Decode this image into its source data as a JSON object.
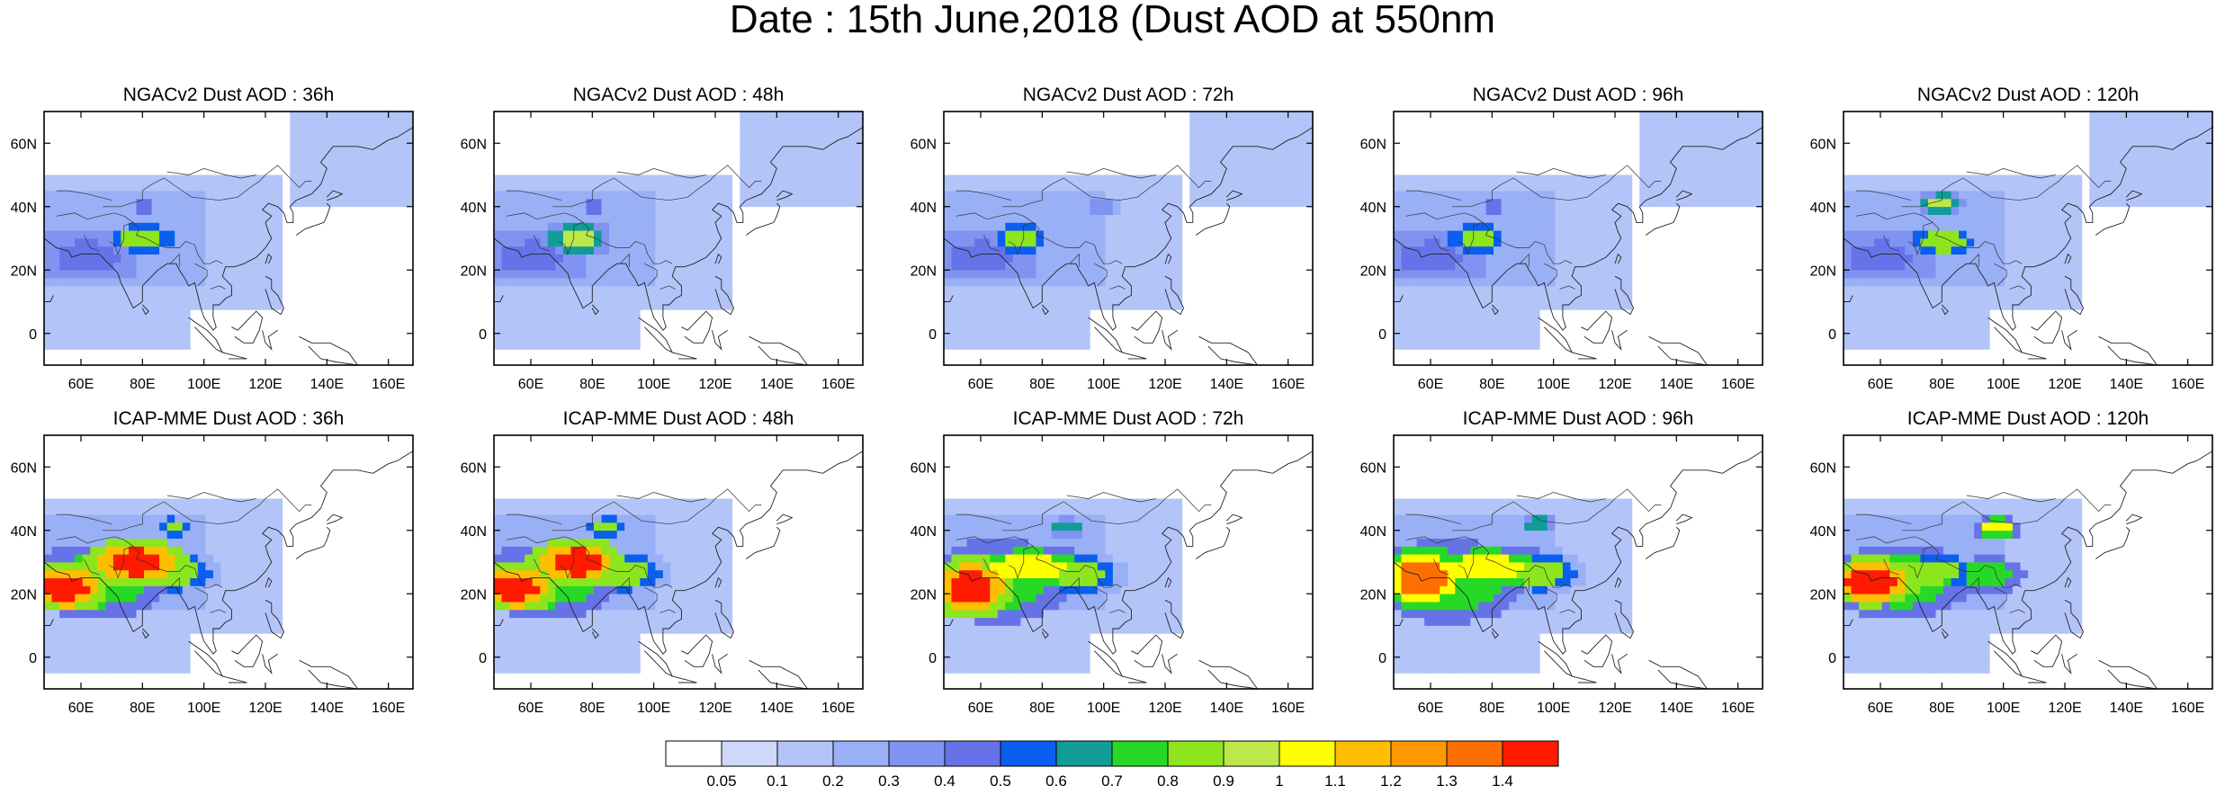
{
  "title": "Date : 15th June,2018 (Dust AOD at 550nm",
  "colorbar": {
    "levels": [
      "0.05",
      "0.1",
      "0.2",
      "0.3",
      "0.4",
      "0.5",
      "0.6",
      "0.7",
      "0.8",
      "0.9",
      "1",
      "1.1",
      "1.2",
      "1.3",
      "1.4"
    ],
    "colors": [
      "#ffffff",
      "#cdd8fb",
      "#b3c4f9",
      "#99b0f6",
      "#8093f1",
      "#6673e8",
      "#0a5ef0",
      "#119c98",
      "#26d926",
      "#8de61d",
      "#bde84a",
      "#ffff00",
      "#ffbf00",
      "#ff9900",
      "#ff6e00",
      "#ff1a00"
    ]
  },
  "chart_data": [
    {
      "type": "heatmap",
      "title": "NGACv2 Dust AOD : 36h",
      "xticks": [
        "60E",
        "80E",
        "100E",
        "120E",
        "140E",
        "160E"
      ],
      "yticks": [
        "60N",
        "40N",
        "20N",
        "0"
      ],
      "xlim": [
        48,
        168
      ],
      "ylim": [
        -10,
        70
      ],
      "hotspots": [
        {
          "lon": 80,
          "lat": 30,
          "rx": 7,
          "ry": 3,
          "level": 9
        },
        {
          "lon": 62,
          "lat": 24,
          "rx": 10,
          "ry": 5,
          "level": 5
        },
        {
          "lon": 80,
          "lat": 40,
          "rx": 4,
          "ry": 2,
          "level": 5
        }
      ]
    },
    {
      "type": "heatmap",
      "title": "NGACv2 Dust AOD : 48h",
      "xticks": [
        "60E",
        "80E",
        "100E",
        "120E",
        "140E",
        "160E"
      ],
      "yticks": [
        "60N",
        "40N",
        "20N",
        "0"
      ],
      "xlim": [
        48,
        168
      ],
      "ylim": [
        -10,
        70
      ],
      "hotspots": [
        {
          "lon": 75,
          "lat": 30,
          "rx": 6,
          "ry": 3,
          "level": 10
        },
        {
          "lon": 60,
          "lat": 24,
          "rx": 10,
          "ry": 5,
          "level": 5
        },
        {
          "lon": 80,
          "lat": 40,
          "rx": 4,
          "ry": 2,
          "level": 5
        }
      ]
    },
    {
      "type": "heatmap",
      "title": "NGACv2 Dust AOD : 72h",
      "xticks": [
        "60E",
        "80E",
        "100E",
        "120E",
        "140E",
        "160E"
      ],
      "yticks": [
        "60N",
        "40N",
        "20N",
        "0"
      ],
      "xlim": [
        48,
        168
      ],
      "ylim": [
        -10,
        70
      ],
      "hotspots": [
        {
          "lon": 73,
          "lat": 30,
          "rx": 6,
          "ry": 3,
          "level": 9
        },
        {
          "lon": 60,
          "lat": 24,
          "rx": 10,
          "ry": 5,
          "level": 5
        },
        {
          "lon": 100,
          "lat": 40,
          "rx": 5,
          "ry": 2,
          "level": 4
        }
      ]
    },
    {
      "type": "heatmap",
      "title": "NGACv2 Dust AOD : 96h",
      "xticks": [
        "60E",
        "80E",
        "100E",
        "120E",
        "140E",
        "160E"
      ],
      "yticks": [
        "60N",
        "40N",
        "20N",
        "0"
      ],
      "xlim": [
        48,
        168
      ],
      "ylim": [
        -10,
        70
      ],
      "hotspots": [
        {
          "lon": 75,
          "lat": 30,
          "rx": 6,
          "ry": 3,
          "level": 9
        },
        {
          "lon": 60,
          "lat": 24,
          "rx": 10,
          "ry": 5,
          "level": 5
        },
        {
          "lon": 80,
          "lat": 40,
          "rx": 4,
          "ry": 2,
          "level": 5
        }
      ]
    },
    {
      "type": "heatmap",
      "title": "NGACv2 Dust AOD : 120h",
      "xticks": [
        "60E",
        "80E",
        "100E",
        "120E",
        "140E",
        "160E"
      ],
      "yticks": [
        "60N",
        "40N",
        "20N",
        "0"
      ],
      "xlim": [
        48,
        168
      ],
      "ylim": [
        -10,
        70
      ],
      "hotspots": [
        {
          "lon": 80,
          "lat": 29,
          "rx": 7,
          "ry": 3,
          "level": 9
        },
        {
          "lon": 60,
          "lat": 24,
          "rx": 10,
          "ry": 5,
          "level": 5
        },
        {
          "lon": 80,
          "lat": 41,
          "rx": 4,
          "ry": 2,
          "level": 10
        }
      ]
    },
    {
      "type": "heatmap",
      "title": "ICAP-MME Dust AOD : 36h",
      "xticks": [
        "60E",
        "80E",
        "100E",
        "120E",
        "140E",
        "160E"
      ],
      "yticks": [
        "60N",
        "40N",
        "20N",
        "0"
      ],
      "xlim": [
        48,
        168
      ],
      "ylim": [
        -10,
        70
      ],
      "hotspots": [
        {
          "lon": 78,
          "lat": 30,
          "rx": 9,
          "ry": 4,
          "level": 15
        },
        {
          "lon": 55,
          "lat": 22,
          "rx": 7,
          "ry": 4,
          "level": 15
        },
        {
          "lon": 65,
          "lat": 24,
          "rx": 16,
          "ry": 8,
          "level": 8
        },
        {
          "lon": 90,
          "lat": 27,
          "rx": 8,
          "ry": 4,
          "level": 9
        },
        {
          "lon": 90,
          "lat": 41,
          "rx": 3,
          "ry": 2,
          "level": 9
        }
      ]
    },
    {
      "type": "heatmap",
      "title": "ICAP-MME Dust AOD : 48h",
      "xticks": [
        "60E",
        "80E",
        "100E",
        "120E",
        "140E",
        "160E"
      ],
      "yticks": [
        "60N",
        "40N",
        "20N",
        "0"
      ],
      "xlim": [
        48,
        168
      ],
      "ylim": [
        -10,
        70
      ],
      "hotspots": [
        {
          "lon": 75,
          "lat": 30,
          "rx": 8,
          "ry": 4,
          "level": 15
        },
        {
          "lon": 55,
          "lat": 22,
          "rx": 7,
          "ry": 4,
          "level": 15
        },
        {
          "lon": 65,
          "lat": 24,
          "rx": 16,
          "ry": 8,
          "level": 8
        },
        {
          "lon": 90,
          "lat": 27,
          "rx": 8,
          "ry": 4,
          "level": 9
        },
        {
          "lon": 85,
          "lat": 41,
          "rx": 4,
          "ry": 2,
          "level": 9
        }
      ]
    },
    {
      "type": "heatmap",
      "title": "ICAP-MME Dust AOD : 72h",
      "xticks": [
        "60E",
        "80E",
        "100E",
        "120E",
        "140E",
        "160E"
      ],
      "yticks": [
        "60N",
        "40N",
        "20N",
        "0"
      ],
      "xlim": [
        48,
        168
      ],
      "ylim": [
        -10,
        70
      ],
      "hotspots": [
        {
          "lon": 57,
          "lat": 22,
          "rx": 7,
          "ry": 5,
          "level": 15
        },
        {
          "lon": 75,
          "lat": 28,
          "rx": 12,
          "ry": 4,
          "level": 11
        },
        {
          "lon": 66,
          "lat": 24,
          "rx": 16,
          "ry": 9,
          "level": 8
        },
        {
          "lon": 92,
          "lat": 26,
          "rx": 8,
          "ry": 4,
          "level": 9
        },
        {
          "lon": 88,
          "lat": 41,
          "rx": 4,
          "ry": 2,
          "level": 7
        }
      ]
    },
    {
      "type": "heatmap",
      "title": "ICAP-MME Dust AOD : 96h",
      "xticks": [
        "60E",
        "80E",
        "100E",
        "120E",
        "140E",
        "160E"
      ],
      "yticks": [
        "60N",
        "40N",
        "20N",
        "0"
      ],
      "xlim": [
        48,
        168
      ],
      "ylim": [
        -10,
        70
      ],
      "hotspots": [
        {
          "lon": 57,
          "lat": 25,
          "rx": 8,
          "ry": 5,
          "level": 14
        },
        {
          "lon": 78,
          "lat": 28,
          "rx": 12,
          "ry": 4,
          "level": 11
        },
        {
          "lon": 66,
          "lat": 24,
          "rx": 17,
          "ry": 9,
          "level": 8
        },
        {
          "lon": 95,
          "lat": 27,
          "rx": 8,
          "ry": 4,
          "level": 9
        },
        {
          "lon": 95,
          "lat": 42,
          "rx": 4,
          "ry": 2,
          "level": 7
        }
      ]
    },
    {
      "type": "heatmap",
      "title": "ICAP-MME Dust AOD : 120h",
      "xticks": [
        "60E",
        "80E",
        "100E",
        "120E",
        "140E",
        "160E"
      ],
      "yticks": [
        "60N",
        "40N",
        "20N",
        "0"
      ],
      "xlim": [
        48,
        168
      ],
      "ylim": [
        -10,
        70
      ],
      "hotspots": [
        {
          "lon": 57,
          "lat": 24,
          "rx": 8,
          "ry": 4,
          "level": 15
        },
        {
          "lon": 75,
          "lat": 27,
          "rx": 11,
          "ry": 4,
          "level": 9
        },
        {
          "lon": 66,
          "lat": 24,
          "rx": 16,
          "ry": 8,
          "level": 8
        },
        {
          "lon": 95,
          "lat": 26,
          "rx": 8,
          "ry": 4,
          "level": 8
        },
        {
          "lon": 98,
          "lat": 41,
          "rx": 4,
          "ry": 2,
          "level": 11
        }
      ]
    }
  ]
}
